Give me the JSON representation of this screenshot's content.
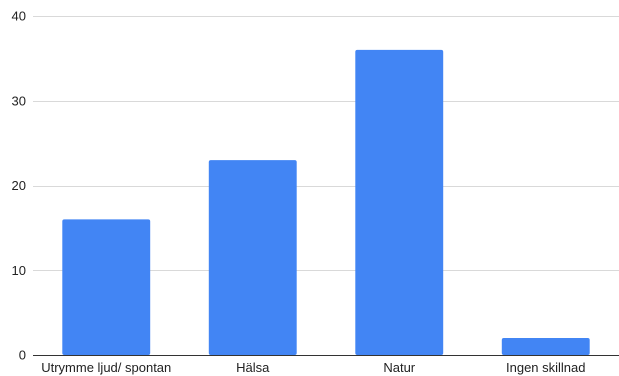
{
  "chart_data": {
    "type": "bar",
    "categories": [
      "Utrymme ljud/ spontan",
      "Hälsa",
      "Natur",
      "Ingen skillnad"
    ],
    "values": [
      16,
      23,
      36,
      2
    ],
    "ylim": [
      0,
      40
    ],
    "yticks": [
      0,
      10,
      20,
      30,
      40
    ],
    "grid": true,
    "legend": "none",
    "bar_color": "#4285F4",
    "grid_color": "#D9D9D9",
    "axis_color": "#333333"
  }
}
